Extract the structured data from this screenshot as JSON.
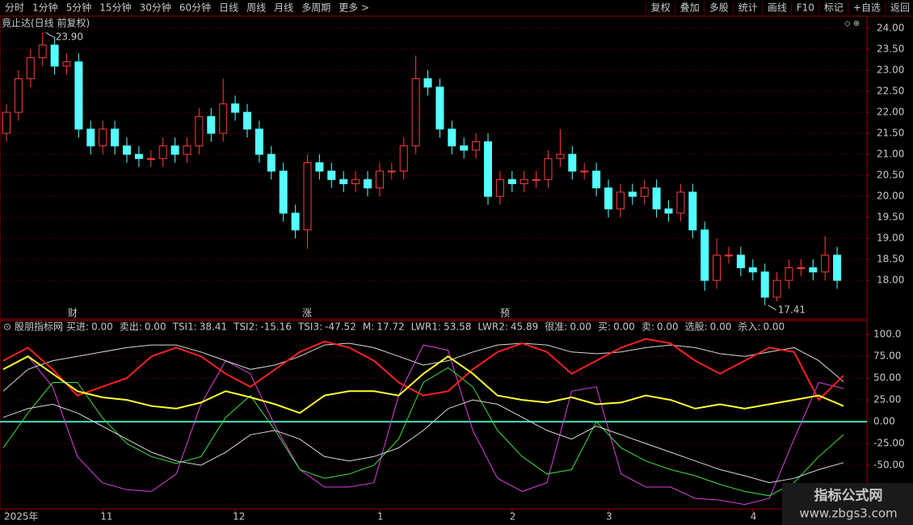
{
  "toolbar": {
    "periods": [
      "分时",
      "1分钟",
      "5分钟",
      "15分钟",
      "30分钟",
      "60分钟",
      "日线",
      "周线",
      "月线",
      "多周期",
      "更多 >"
    ],
    "active": "日线",
    "tools": [
      "复权",
      "叠加",
      "多股",
      "统计",
      "画线",
      "F10",
      "标记",
      "+自选",
      "返回"
    ]
  },
  "events": [
    "财",
    "涨",
    "预"
  ],
  "watermark": {
    "title": "指标公式网",
    "url": "www.zbgs3.com"
  },
  "chart_data": [
    {
      "type": "candlestick",
      "title": "竟止达(日线 前复权)",
      "categories": [
        "2025年",
        null,
        null,
        null,
        null,
        null,
        null,
        null,
        "11",
        null,
        null,
        null,
        null,
        null,
        null,
        null,
        null,
        null,
        null,
        "12",
        null,
        null,
        null,
        null,
        null,
        null,
        null,
        null,
        null,
        null,
        null,
        "1",
        null,
        null,
        null,
        null,
        null,
        null,
        null,
        null,
        null,
        null,
        "2",
        null,
        null,
        null,
        null,
        null,
        null,
        null,
        "3",
        null,
        null,
        null,
        null,
        null,
        null,
        null,
        null,
        null,
        null,
        null,
        "4",
        null,
        null,
        null,
        null,
        null,
        null,
        null
      ],
      "open": [
        21.5,
        22.0,
        22.8,
        23.3,
        23.6,
        23.1,
        23.2,
        21.6,
        21.2,
        21.6,
        21.2,
        21.0,
        20.9,
        20.9,
        21.2,
        21.0,
        21.2,
        21.9,
        21.5,
        22.2,
        22.0,
        21.6,
        21.0,
        20.6,
        19.6,
        19.2,
        20.8,
        20.6,
        20.4,
        20.3,
        20.4,
        20.2,
        20.6,
        20.6,
        21.2,
        22.8,
        22.6,
        21.6,
        21.2,
        21.1,
        21.3,
        20.0,
        20.4,
        20.3,
        20.4,
        20.4,
        20.9,
        21.0,
        20.6,
        20.6,
        20.2,
        19.7,
        20.1,
        20.0,
        20.2,
        19.7,
        19.6,
        20.1,
        19.2,
        18.0,
        18.6,
        18.6,
        18.3,
        18.2,
        17.6,
        18.0,
        18.3,
        18.3,
        18.2,
        18.6
      ],
      "high": [
        22.2,
        23.0,
        23.5,
        23.9,
        23.8,
        23.4,
        23.4,
        21.8,
        21.8,
        21.8,
        21.4,
        21.2,
        21.1,
        21.4,
        21.4,
        21.4,
        22.1,
        22.1,
        22.8,
        22.4,
        22.2,
        21.8,
        21.2,
        20.8,
        19.8,
        21.0,
        21.0,
        20.8,
        20.6,
        20.6,
        20.6,
        20.8,
        20.8,
        21.4,
        23.35,
        23.0,
        22.8,
        21.8,
        21.4,
        21.5,
        21.5,
        20.6,
        20.6,
        20.6,
        20.6,
        21.1,
        21.6,
        21.2,
        20.8,
        20.8,
        20.4,
        20.3,
        20.3,
        20.4,
        20.4,
        19.9,
        20.3,
        20.3,
        19.4,
        19.0,
        18.8,
        18.8,
        18.5,
        18.4,
        18.2,
        18.5,
        18.5,
        18.5,
        19.05,
        18.8
      ],
      "low": [
        21.3,
        21.8,
        22.6,
        23.1,
        22.9,
        22.9,
        21.4,
        21.0,
        21.0,
        21.0,
        20.8,
        20.7,
        20.7,
        20.7,
        20.8,
        20.8,
        21.0,
        21.3,
        21.3,
        21.8,
        21.4,
        20.8,
        20.4,
        19.4,
        19.0,
        18.75,
        20.4,
        20.2,
        20.1,
        20.1,
        20.0,
        20.0,
        20.4,
        20.4,
        21.0,
        22.4,
        21.4,
        21.0,
        20.9,
        20.9,
        19.8,
        19.8,
        20.1,
        20.1,
        20.2,
        20.2,
        20.7,
        20.4,
        20.4,
        20.0,
        19.5,
        19.5,
        19.8,
        19.8,
        19.5,
        19.4,
        19.4,
        19.0,
        17.75,
        17.8,
        18.4,
        18.1,
        18.0,
        17.41,
        17.5,
        17.8,
        18.1,
        18.0,
        18.0,
        17.8
      ],
      "close": [
        22.0,
        22.8,
        23.3,
        23.6,
        23.1,
        23.2,
        21.6,
        21.2,
        21.6,
        21.2,
        21.0,
        20.9,
        20.9,
        21.2,
        21.0,
        21.2,
        21.9,
        21.5,
        22.2,
        22.0,
        21.6,
        21.0,
        20.6,
        19.6,
        19.2,
        20.8,
        20.6,
        20.4,
        20.3,
        20.4,
        20.2,
        20.6,
        20.6,
        21.2,
        22.8,
        22.6,
        21.6,
        21.2,
        21.1,
        21.3,
        20.0,
        20.4,
        20.3,
        20.4,
        20.4,
        20.9,
        21.0,
        20.6,
        20.6,
        20.2,
        19.7,
        20.1,
        20.0,
        20.2,
        19.7,
        19.6,
        20.1,
        19.2,
        18.0,
        18.6,
        18.6,
        18.3,
        18.2,
        17.6,
        18.0,
        18.3,
        18.3,
        18.2,
        18.6,
        18.0
      ],
      "up_color": "#ff3b3b",
      "down_color": "#54ffff",
      "annotations": [
        {
          "value": 23.9,
          "label": "23.90"
        },
        {
          "value": 17.41,
          "label": "17.41"
        }
      ],
      "ylim": [
        17.08,
        24.25
      ],
      "yticks": [
        {
          "value": 24,
          "label": "24.00"
        },
        {
          "value": 23.5,
          "label": "23.50"
        },
        {
          "value": 23,
          "label": "23.00"
        },
        {
          "value": 22.5,
          "label": "22.50"
        },
        {
          "value": 22,
          "label": "22.00"
        },
        {
          "value": 21.5,
          "label": "21.50"
        },
        {
          "value": 21,
          "label": "21.00"
        },
        {
          "value": 20.5,
          "label": "20.50"
        },
        {
          "value": 20,
          "label": "20.00"
        },
        {
          "value": 19.5,
          "label": "19.50"
        },
        {
          "value": 19,
          "label": "19.00"
        },
        {
          "value": 18.5,
          "label": "18.50"
        },
        {
          "value": 18,
          "label": "18.00"
        }
      ],
      "grid": true
    },
    {
      "type": "line",
      "title": "股朋指标网",
      "legend": [
        {
          "name": "买进",
          "value": 0,
          "label": "0.00",
          "color": "#ff40ff"
        },
        {
          "name": "卖出",
          "value": 0,
          "label": "0.00",
          "color": "#40ff40"
        },
        {
          "name": "TSI1",
          "value": 38.41,
          "label": "38.41",
          "color": "#ff40ff"
        },
        {
          "name": "TSI2",
          "value": -15.16,
          "label": "-15.16",
          "color": "#40ff40"
        },
        {
          "name": "TSI3",
          "value": -47.52,
          "label": "-47.52",
          "color": "#e0e0e0"
        },
        {
          "name": "M",
          "value": 17.72,
          "label": "17.72",
          "color": "#ffff40"
        },
        {
          "name": "LWR1",
          "value": 53.58,
          "label": "53.58",
          "color": "#ff3b3b"
        },
        {
          "name": "LWR2",
          "value": 45.89,
          "label": "45.89",
          "color": "#e0e0e0"
        },
        {
          "name": "很准",
          "value": 0,
          "label": "0.00",
          "color": "#ff3b3b"
        },
        {
          "name": "买",
          "value": 0,
          "label": "0.00",
          "color": "#ff3b3b"
        },
        {
          "name": "卖",
          "value": 0,
          "label": "0.00",
          "color": "#40ff40"
        },
        {
          "name": "选股",
          "value": 0,
          "label": "0.00",
          "color": "#4060ff"
        },
        {
          "name": "杀入",
          "value": 0,
          "label": "0.00",
          "color": "#40ffff"
        }
      ],
      "series": [
        {
          "name": "TSI1",
          "color": "#e040e0",
          "values": [
            60,
            75,
            40,
            -40,
            -70,
            -78,
            -80,
            -60,
            20,
            70,
            55,
            -5,
            -55,
            -75,
            -75,
            -70,
            30,
            88,
            82,
            -10,
            -65,
            -80,
            -70,
            35,
            40,
            -60,
            -75,
            -75,
            -88,
            -90,
            -95,
            -88,
            -20,
            45,
            38
          ]
        },
        {
          "name": "TSI2",
          "color": "#40e040",
          "values": [
            -30,
            10,
            45,
            45,
            5,
            -25,
            -40,
            -48,
            -40,
            5,
            30,
            -10,
            -55,
            -65,
            -60,
            -50,
            -20,
            45,
            62,
            40,
            -10,
            -40,
            -60,
            -55,
            0,
            -30,
            -45,
            -55,
            -62,
            -72,
            -80,
            -85,
            -70,
            -40,
            -15
          ]
        },
        {
          "name": "TSI3",
          "color": "#d8d8d8",
          "values": [
            5,
            15,
            20,
            10,
            -5,
            -20,
            -35,
            -45,
            -50,
            -35,
            -15,
            -10,
            -20,
            -40,
            -45,
            -40,
            -30,
            -10,
            15,
            25,
            20,
            5,
            -10,
            -20,
            -5,
            -15,
            -25,
            -35,
            -45,
            -55,
            -62,
            -70,
            -65,
            -55,
            -47
          ]
        },
        {
          "name": "LWR2",
          "color": "#d8d8d8",
          "values": [
            35,
            60,
            70,
            75,
            80,
            85,
            88,
            88,
            80,
            70,
            60,
            65,
            75,
            88,
            90,
            85,
            75,
            65,
            70,
            80,
            88,
            90,
            88,
            80,
            78,
            80,
            85,
            88,
            85,
            78,
            75,
            80,
            85,
            70,
            46
          ]
        },
        {
          "name": "LWR1",
          "color": "#ff2020",
          "values": [
            70,
            85,
            60,
            30,
            40,
            50,
            75,
            85,
            75,
            55,
            40,
            60,
            80,
            92,
            85,
            70,
            45,
            30,
            35,
            60,
            80,
            90,
            80,
            55,
            70,
            85,
            95,
            90,
            70,
            55,
            70,
            85,
            80,
            25,
            53
          ]
        },
        {
          "name": "M",
          "color": "#ffff30",
          "values": [
            60,
            75,
            55,
            35,
            28,
            25,
            18,
            15,
            22,
            35,
            28,
            20,
            10,
            30,
            35,
            35,
            30,
            55,
            75,
            55,
            30,
            25,
            22,
            28,
            20,
            22,
            30,
            25,
            15,
            20,
            15,
            20,
            25,
            30,
            18
          ]
        }
      ],
      "ylim": [
        -100,
        115
      ],
      "yticks": [
        {
          "value": 100,
          "label": "100.0"
        },
        {
          "value": 75,
          "label": "75.00"
        },
        {
          "value": 50,
          "label": "50.00"
        },
        {
          "value": 25,
          "label": "25.00"
        },
        {
          "value": 0,
          "label": "0.00"
        },
        {
          "value": -25,
          "label": "-25.00"
        },
        {
          "value": -50,
          "label": "-50.00"
        }
      ],
      "grid": true
    }
  ]
}
